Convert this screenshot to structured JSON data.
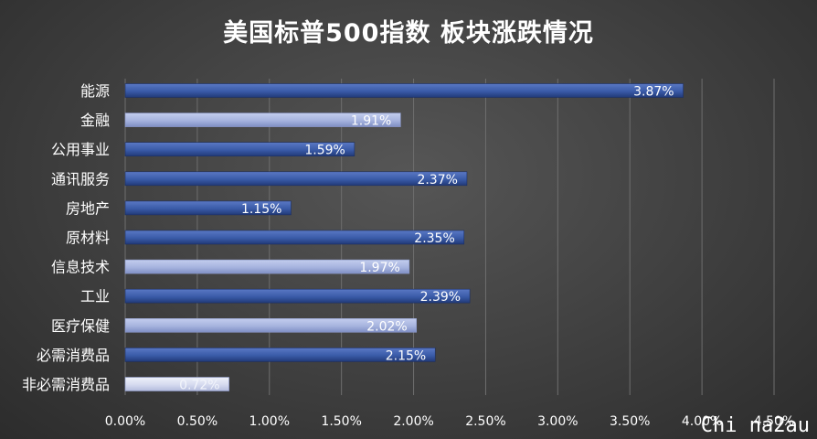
{
  "chart_data": {
    "type": "bar",
    "orientation": "horizontal",
    "title": "美国标普500指数 板块涨跌情况",
    "categories": [
      "能源",
      "金融",
      "公用事业",
      "通讯服务",
      "房地产",
      "原材料",
      "信息技术",
      "工业",
      "医疗保健",
      "必需消费品",
      "非必需消费品"
    ],
    "values": [
      3.87,
      1.91,
      1.59,
      2.37,
      1.15,
      2.35,
      1.97,
      2.39,
      2.02,
      2.15,
      0.72
    ],
    "data_labels": [
      "3.87%",
      "1.91%",
      "1.59%",
      "2.37%",
      "1.15%",
      "2.35%",
      "1.97%",
      "2.39%",
      "2.02%",
      "2.15%",
      "0.72%"
    ],
    "xlim": [
      0,
      4.5
    ],
    "x_ticks": [
      "0.00%",
      "0.50%",
      "1.00%",
      "1.50%",
      "2.00%",
      "2.50%",
      "3.00%",
      "3.50%",
      "4.00%",
      "4.50%"
    ],
    "grid": "vertical",
    "colors": {
      "dark_bar": "#3a5ba8",
      "light_bar": "#a6b3de",
      "lightest_bar": "#d5daef",
      "grid": "#6e6e6e",
      "text": "#ffffff"
    },
    "bar_shades": [
      "dark",
      "light",
      "dark",
      "dark",
      "dark",
      "dark",
      "light",
      "dark",
      "light",
      "dark",
      "lightest"
    ]
  },
  "watermark": "Chi na2au"
}
